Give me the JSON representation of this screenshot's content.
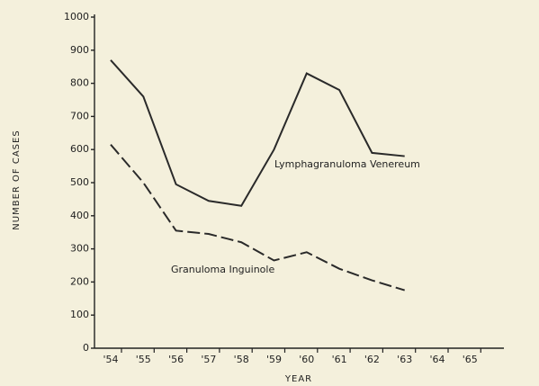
{
  "chart_data": {
    "type": "line",
    "ylabel": "NUMBER OF CASES",
    "xlabel": "YEAR",
    "categories": [
      "'54",
      "'55",
      "'56",
      "'57",
      "'58",
      "'59",
      "'60",
      "'61",
      "'62",
      "'63",
      "'64",
      "'65"
    ],
    "series": [
      {
        "name": "Lymphagranuloma Venereum",
        "color": "#2a2a2a",
        "dashed": false,
        "values": [
          870,
          760,
          495,
          445,
          430,
          600,
          830,
          780,
          590,
          580,
          null,
          null
        ]
      },
      {
        "name": "Granuloma Inguinole",
        "color": "#2a2a2a",
        "dashed": true,
        "values": [
          615,
          500,
          355,
          345,
          320,
          265,
          290,
          240,
          205,
          175,
          null,
          null
        ]
      }
    ],
    "ylim": [
      0,
      1000
    ],
    "yticks": [
      0,
      100,
      200,
      300,
      400,
      500,
      600,
      700,
      800,
      900,
      1000
    ],
    "grid": false
  }
}
